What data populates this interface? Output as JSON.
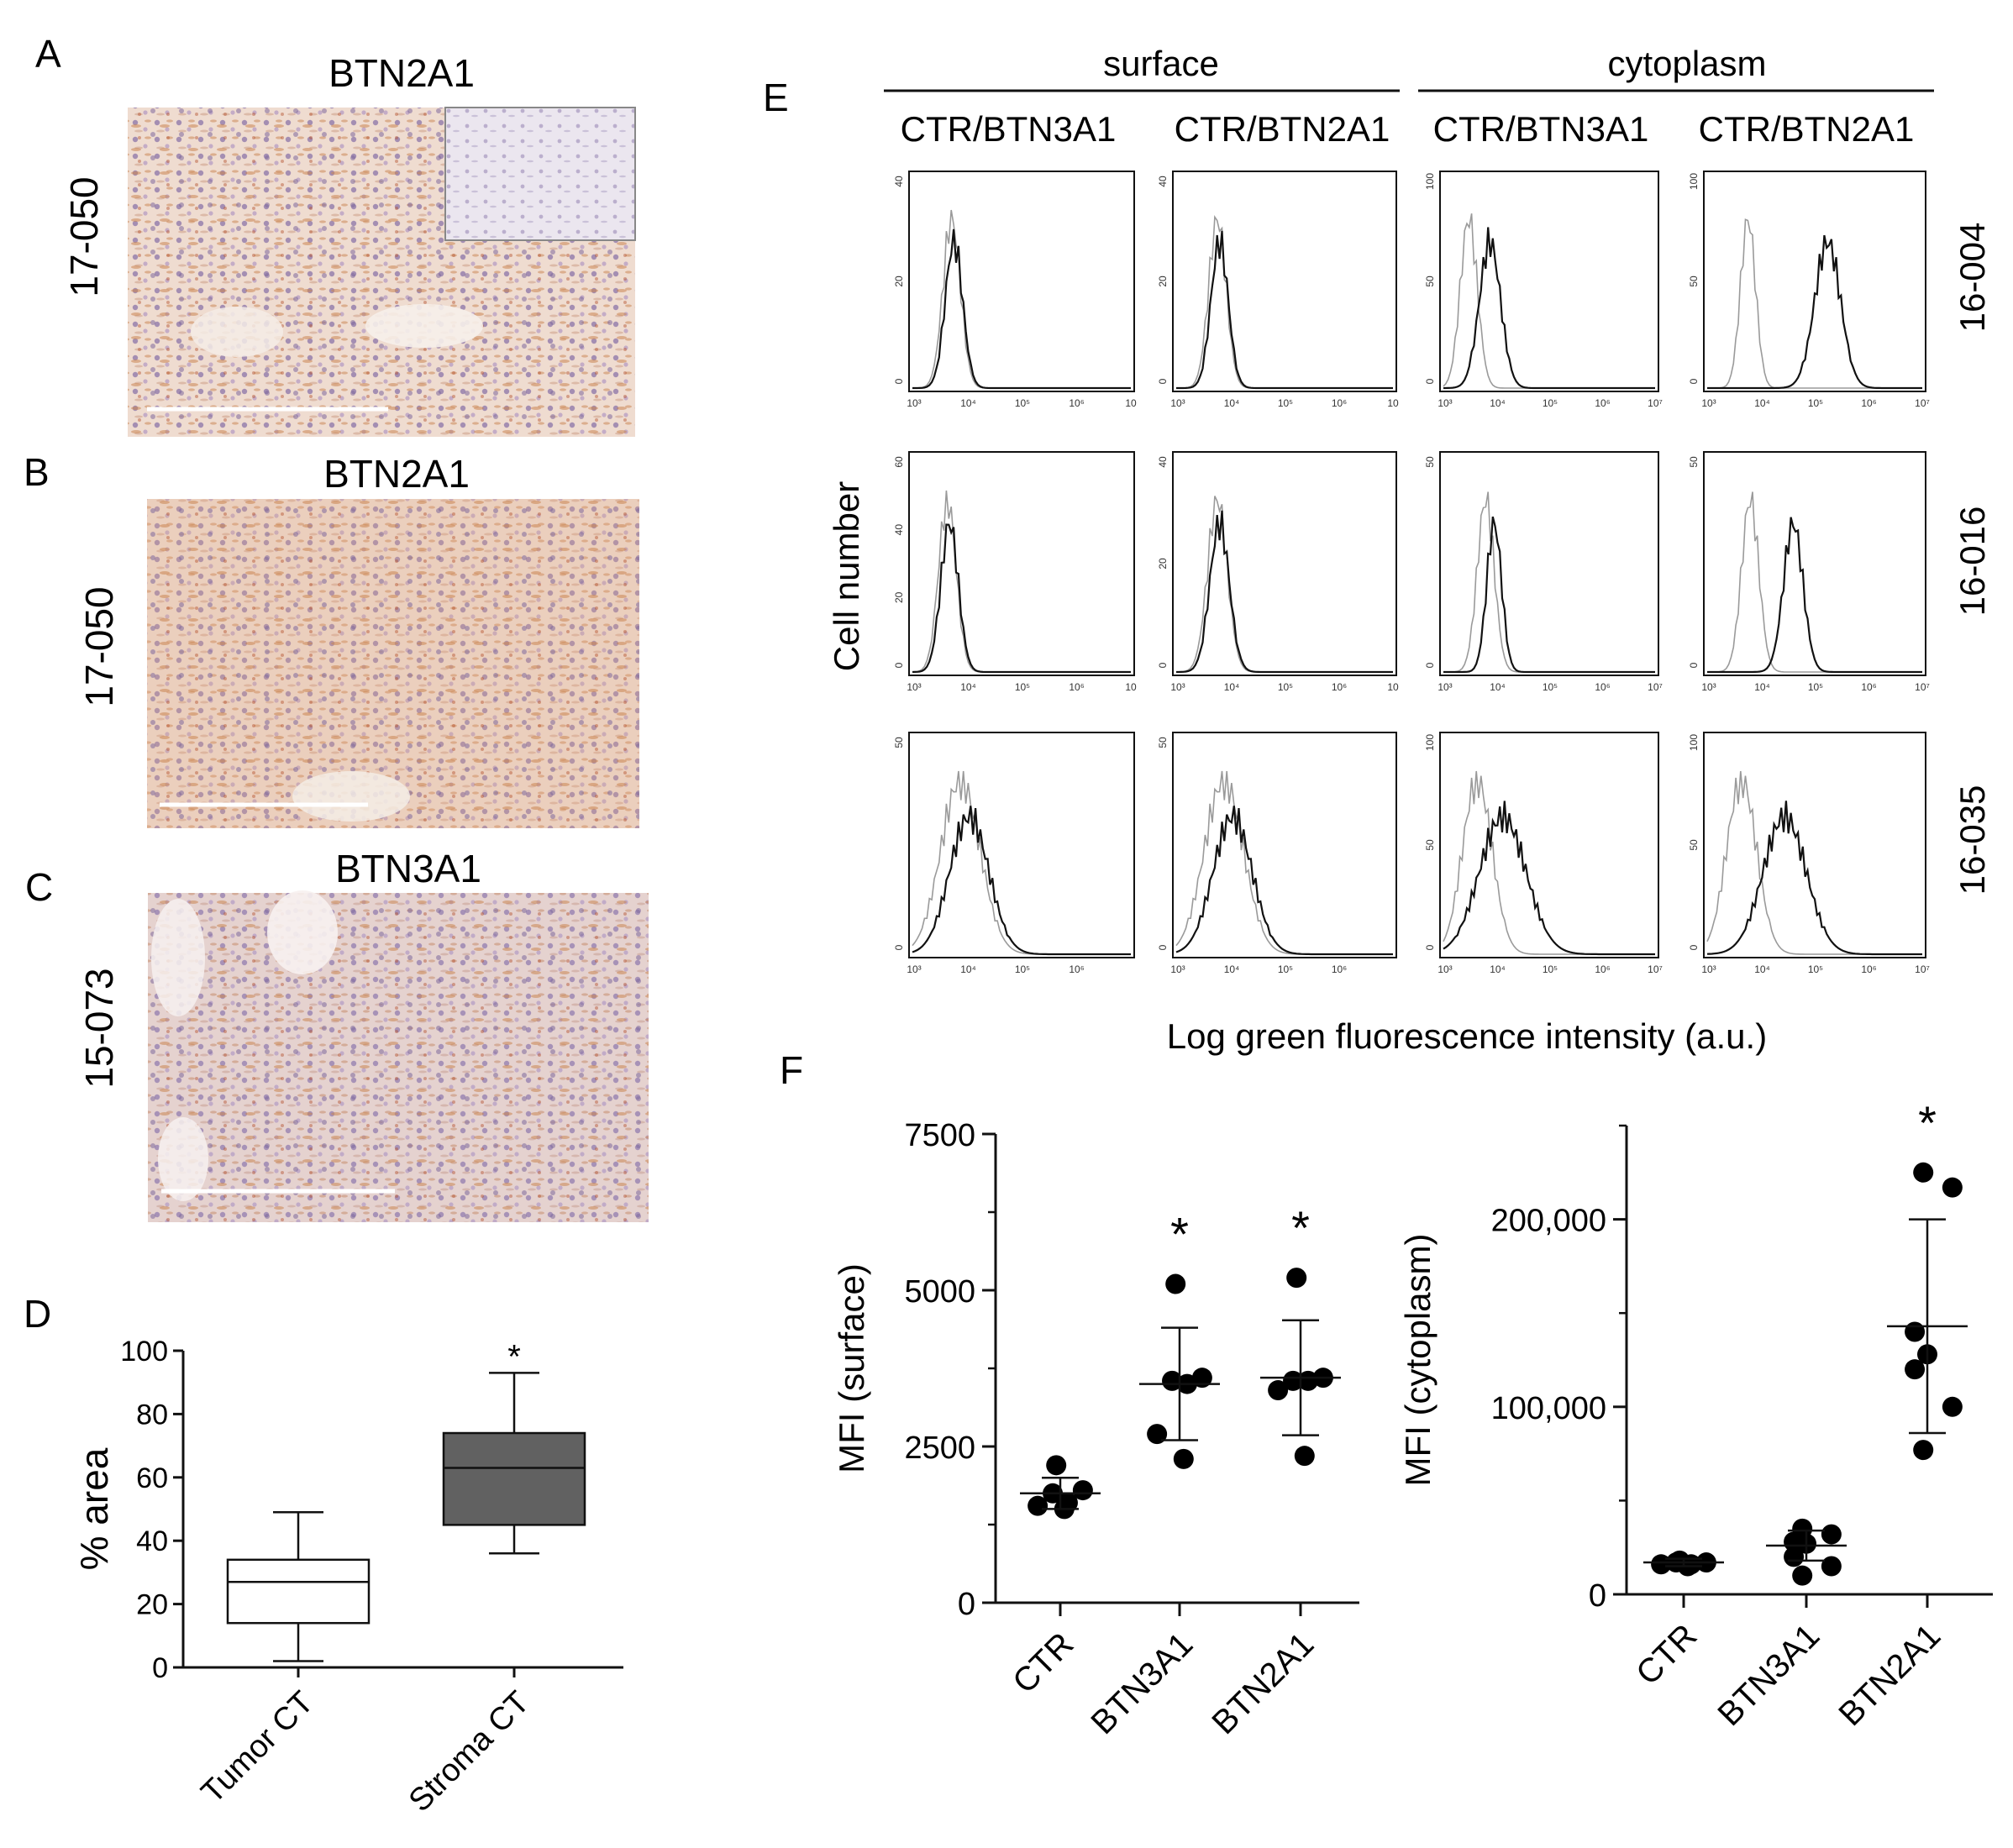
{
  "panels": {
    "A": {
      "letter": "A",
      "title": "BTN2A1",
      "sample": "17-050"
    },
    "B": {
      "letter": "B",
      "title": "BTN2A1",
      "sample": "17-050"
    },
    "C": {
      "letter": "C",
      "title": "BTN3A1",
      "sample": "15-073"
    }
  },
  "colors": {
    "ihc_brown": "#d9a07a",
    "ihc_purple": "#9a86b6",
    "ihc_background": "#efdcd0",
    "box_dark": "#616161"
  },
  "panelE": {
    "letter": "E",
    "groups": [
      "surface",
      "cytoplasm"
    ],
    "columns": [
      "CTR/BTN3A1",
      "CTR/BTN2A1",
      "CTR/BTN3A1",
      "CTR/BTN2A1"
    ],
    "rows": [
      "16-004",
      "16-016",
      "16-035"
    ],
    "ylabel": "Cell number",
    "xlabel": "Log green fluorescence intensity (a.u.)",
    "xticks": [
      "10³",
      "10⁴",
      "10⁵",
      "10⁶",
      "10⁷"
    ],
    "xticks_trunc": [
      "10³",
      "10⁴",
      "10⁵",
      "10⁶",
      "10"
    ],
    "yticks_surface": [
      "40",
      "20",
      "0"
    ],
    "yticks_surface_r2": [
      "60",
      "40",
      "20",
      "0"
    ],
    "yticks_cyto": [
      "100",
      "50",
      "0"
    ],
    "yticks_50": [
      "50",
      "0"
    ],
    "yticks_cyto_r1": [
      "50",
      "0"
    ]
  },
  "chart_data": [
    {
      "id": "D",
      "panel": "D",
      "type": "box",
      "title": "",
      "xlabel": "",
      "ylabel": "% area",
      "ylim": [
        0,
        100
      ],
      "yticks": [
        0,
        20,
        40,
        60,
        80,
        100
      ],
      "categories": [
        "Tumor CT",
        "Stroma CT"
      ],
      "boxes": [
        {
          "name": "Tumor CT",
          "min": 2,
          "q1": 14,
          "median": 27,
          "q3": 34,
          "max": 49,
          "fill": "#ffffff"
        },
        {
          "name": "Stroma CT",
          "min": 36,
          "q1": 45,
          "median": 63,
          "q3": 74,
          "max": 93,
          "fill": "#616161"
        }
      ],
      "annotations": [
        "",
        "*"
      ]
    },
    {
      "id": "F1",
      "panel": "F",
      "type": "scatter",
      "title": "",
      "xlabel": "",
      "ylabel": "MFI (surface)",
      "ylim": [
        0,
        7500
      ],
      "yticks": [
        0,
        2500,
        5000,
        7500
      ],
      "ytick_labels": [
        "0",
        "2500",
        "5000",
        "7500"
      ],
      "categories": [
        "CTR",
        "BTN3A1",
        "BTN2A1"
      ],
      "points": [
        [
          2200,
          1800,
          1750,
          1600,
          1550,
          1500
        ],
        [
          5100,
          3600,
          3550,
          3500,
          2700,
          2300
        ],
        [
          5200,
          3600,
          3550,
          3550,
          3400,
          2350
        ]
      ],
      "mean": [
        1750,
        3500,
        3600
      ],
      "sd": [
        250,
        900,
        920
      ],
      "annotations": [
        "",
        "*",
        "*"
      ]
    },
    {
      "id": "F2",
      "panel": "F",
      "type": "scatter",
      "title": "",
      "xlabel": "",
      "ylabel": "MFI (cytoplasm)",
      "ylim": [
        0,
        250000
      ],
      "yticks": [
        0,
        100000,
        200000
      ],
      "ytick_labels": [
        "0",
        "100,000",
        "200,000"
      ],
      "categories": [
        "CTR",
        "BTN3A1",
        "BTN2A1"
      ],
      "points": [
        [
          18000,
          17000,
          17000,
          16000,
          16000,
          15000
        ],
        [
          35000,
          32000,
          28000,
          27000,
          20000,
          15000,
          10000
        ],
        [
          225000,
          217000,
          140000,
          128000,
          120000,
          100000,
          77000
        ]
      ],
      "mean": [
        17000,
        26000,
        143000
      ],
      "sd": [
        2000,
        8000,
        57000
      ],
      "annotations": [
        "",
        "",
        "*"
      ]
    }
  ],
  "panelF": {
    "letter": "F"
  },
  "panelD": {
    "letter": "D"
  }
}
